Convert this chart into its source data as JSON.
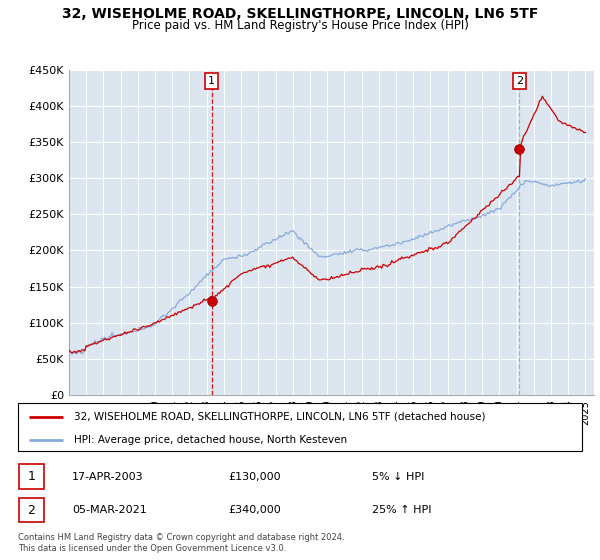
{
  "title": "32, WISEHOLME ROAD, SKELLINGTHORPE, LINCOLN, LN6 5TF",
  "subtitle": "Price paid vs. HM Land Registry's House Price Index (HPI)",
  "ylim": [
    0,
    450000
  ],
  "yticks": [
    0,
    50000,
    100000,
    150000,
    200000,
    250000,
    300000,
    350000,
    400000,
    450000
  ],
  "ytick_labels": [
    "£0",
    "£50K",
    "£100K",
    "£150K",
    "£200K",
    "£250K",
    "£300K",
    "£350K",
    "£400K",
    "£450K"
  ],
  "xlim_start": 1995.0,
  "xlim_end": 2025.5,
  "sale1_x": 2003.29,
  "sale1_y": 130000,
  "sale2_x": 2021.17,
  "sale2_y": 340000,
  "legend_line1": "32, WISEHOLME ROAD, SKELLINGTHORPE, LINCOLN, LN6 5TF (detached house)",
  "legend_line2": "HPI: Average price, detached house, North Kesteven",
  "line_color_red": "#cc0000",
  "line_color_blue": "#88aadd",
  "marker_color_red": "#cc0000",
  "chart_bg": "#dce6f0",
  "grid_color": "#ffffff",
  "vline1_color": "#cc0000",
  "vline2_color": "#aaaaaa"
}
